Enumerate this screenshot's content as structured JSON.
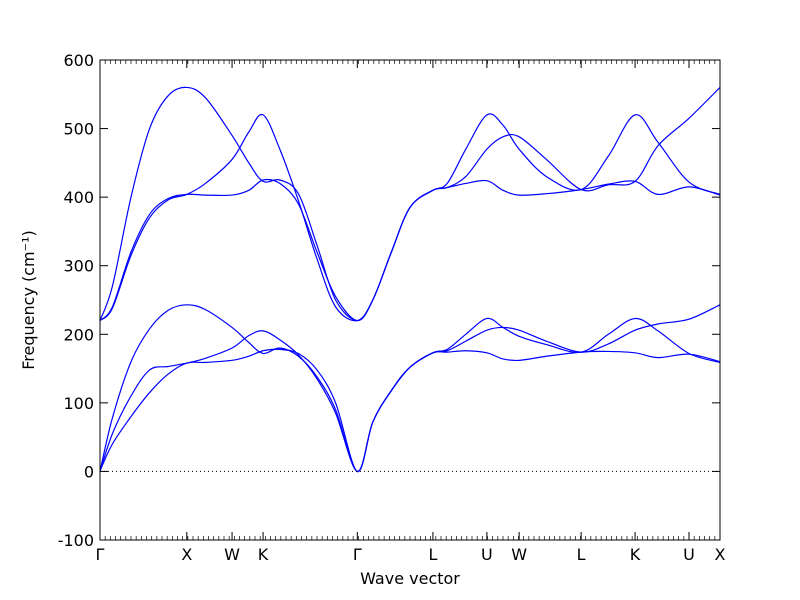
{
  "chart_data": {
    "type": "line",
    "title": "",
    "xlabel": "Wave vector",
    "ylabel": "Frequency (cm⁻¹)",
    "ylim": [
      -100,
      600
    ],
    "yticks": [
      -100,
      0,
      100,
      200,
      300,
      400,
      500,
      600
    ],
    "xlim": [
      0,
      100
    ],
    "xticks": [
      {
        "label": "Γ",
        "x": 0
      },
      {
        "label": "X",
        "x": 14.0
      },
      {
        "label": "W",
        "x": 21.3
      },
      {
        "label": "K",
        "x": 26.3
      },
      {
        "label": "Γ",
        "x": 41.5
      },
      {
        "label": "L",
        "x": 53.7
      },
      {
        "label": "U",
        "x": 62.4
      },
      {
        "label": "W",
        "x": 67.6
      },
      {
        "label": "L",
        "x": 77.6
      },
      {
        "label": "K",
        "x": 86.3
      },
      {
        "label": "U",
        "x": 95.0
      },
      {
        "label": "X",
        "x": 100
      }
    ],
    "zero_line": {
      "y": 0,
      "style": "dotted"
    },
    "line_color": "#0000ff",
    "series": [
      {
        "values": [
          [
            0,
            1
          ],
          [
            2,
            40
          ],
          [
            5,
            80
          ],
          [
            8,
            115
          ],
          [
            11,
            142
          ],
          [
            14,
            158
          ],
          [
            17,
            159
          ],
          [
            21.3,
            162
          ],
          [
            24,
            168
          ],
          [
            26.3,
            176
          ],
          [
            29,
            178
          ],
          [
            32,
            172
          ],
          [
            35,
            148
          ],
          [
            38,
            100
          ],
          [
            41.5,
            0
          ],
          [
            44,
            72
          ],
          [
            47,
            118
          ],
          [
            50,
            152
          ],
          [
            53.7,
            173
          ],
          [
            56,
            174
          ],
          [
            59,
            176
          ],
          [
            62.4,
            173
          ],
          [
            65,
            164
          ],
          [
            67.6,
            162
          ],
          [
            72,
            168
          ],
          [
            77.6,
            174
          ],
          [
            82,
            175
          ],
          [
            86.3,
            173
          ],
          [
            90,
            166
          ],
          [
            95,
            171
          ],
          [
            100,
            160
          ]
        ]
      },
      {
        "values": [
          [
            0,
            0
          ],
          [
            2,
            55
          ],
          [
            5,
            110
          ],
          [
            8,
            148
          ],
          [
            11,
            153
          ],
          [
            14,
            158
          ],
          [
            17,
            165
          ],
          [
            21.3,
            180
          ],
          [
            24,
            198
          ],
          [
            26.3,
            205
          ],
          [
            29,
            192
          ],
          [
            32,
            170
          ],
          [
            35,
            135
          ],
          [
            38,
            85
          ],
          [
            41.5,
            0
          ],
          [
            44,
            72
          ],
          [
            47,
            118
          ],
          [
            50,
            152
          ],
          [
            53.7,
            173
          ],
          [
            56,
            176
          ],
          [
            59,
            190
          ],
          [
            62.4,
            206
          ],
          [
            65,
            210
          ],
          [
            67.6,
            206
          ],
          [
            72,
            190
          ],
          [
            77.6,
            174
          ],
          [
            82,
            186
          ],
          [
            86.3,
            206
          ],
          [
            90,
            215
          ],
          [
            95,
            222
          ],
          [
            100,
            243
          ]
        ]
      },
      {
        "values": [
          [
            0,
            0
          ],
          [
            2,
            78
          ],
          [
            5,
            160
          ],
          [
            8,
            208
          ],
          [
            11,
            235
          ],
          [
            14,
            243
          ],
          [
            17,
            236
          ],
          [
            21.3,
            210
          ],
          [
            24,
            188
          ],
          [
            26.3,
            172
          ],
          [
            29,
            180
          ],
          [
            32,
            168
          ],
          [
            35,
            138
          ],
          [
            38,
            90
          ],
          [
            41.5,
            0
          ],
          [
            44,
            72
          ],
          [
            47,
            118
          ],
          [
            50,
            152
          ],
          [
            53.7,
            173
          ],
          [
            56,
            178
          ],
          [
            59,
            200
          ],
          [
            62.4,
            223
          ],
          [
            65,
            210
          ],
          [
            67.6,
            197
          ],
          [
            72,
            185
          ],
          [
            77.6,
            174
          ],
          [
            82,
            200
          ],
          [
            86.3,
            223
          ],
          [
            90,
            205
          ],
          [
            95,
            172
          ],
          [
            100,
            159
          ]
        ]
      },
      {
        "values": [
          [
            0,
            220
          ],
          [
            2,
            240
          ],
          [
            5,
            320
          ],
          [
            8,
            375
          ],
          [
            11,
            398
          ],
          [
            14,
            404
          ],
          [
            17,
            403
          ],
          [
            21.3,
            403
          ],
          [
            24,
            410
          ],
          [
            26.3,
            425
          ],
          [
            29,
            420
          ],
          [
            32,
            390
          ],
          [
            35,
            320
          ],
          [
            38,
            255
          ],
          [
            41.5,
            220
          ],
          [
            44,
            250
          ],
          [
            47,
            320
          ],
          [
            50,
            385
          ],
          [
            53.7,
            410
          ],
          [
            56,
            414
          ],
          [
            59,
            420
          ],
          [
            62.4,
            424
          ],
          [
            65,
            410
          ],
          [
            67.6,
            403
          ],
          [
            72,
            405
          ],
          [
            77.6,
            411
          ],
          [
            82,
            419
          ],
          [
            86.3,
            423
          ],
          [
            90,
            404
          ],
          [
            95,
            415
          ],
          [
            100,
            403
          ]
        ]
      },
      {
        "values": [
          [
            0,
            220
          ],
          [
            2,
            238
          ],
          [
            5,
            315
          ],
          [
            8,
            370
          ],
          [
            11,
            396
          ],
          [
            14,
            404
          ],
          [
            17,
            420
          ],
          [
            21.3,
            455
          ],
          [
            24,
            495
          ],
          [
            26.3,
            520
          ],
          [
            29,
            470
          ],
          [
            32,
            395
          ],
          [
            35,
            310
          ],
          [
            38,
            240
          ],
          [
            41.5,
            220
          ],
          [
            44,
            250
          ],
          [
            47,
            320
          ],
          [
            50,
            385
          ],
          [
            53.7,
            410
          ],
          [
            56,
            414
          ],
          [
            59,
            430
          ],
          [
            62.4,
            470
          ],
          [
            65,
            488
          ],
          [
            67.6,
            488
          ],
          [
            72,
            455
          ],
          [
            77.6,
            411
          ],
          [
            82,
            418
          ],
          [
            86.3,
            423
          ],
          [
            90,
            475
          ],
          [
            95,
            515
          ],
          [
            100,
            560
          ]
        ]
      },
      {
        "values": [
          [
            0,
            220
          ],
          [
            2,
            270
          ],
          [
            5,
            400
          ],
          [
            8,
            500
          ],
          [
            11,
            548
          ],
          [
            14,
            560
          ],
          [
            17,
            545
          ],
          [
            21.3,
            490
          ],
          [
            24,
            450
          ],
          [
            26.3,
            423
          ],
          [
            29,
            425
          ],
          [
            32,
            405
          ],
          [
            35,
            330
          ],
          [
            38,
            250
          ],
          [
            41.5,
            220
          ],
          [
            44,
            250
          ],
          [
            47,
            320
          ],
          [
            50,
            385
          ],
          [
            53.7,
            410
          ],
          [
            56,
            420
          ],
          [
            59,
            470
          ],
          [
            62.4,
            520
          ],
          [
            65,
            505
          ],
          [
            67.6,
            470
          ],
          [
            72,
            430
          ],
          [
            77.6,
            411
          ],
          [
            82,
            460
          ],
          [
            86.3,
            520
          ],
          [
            90,
            480
          ],
          [
            95,
            422
          ],
          [
            100,
            404
          ]
        ]
      }
    ]
  }
}
